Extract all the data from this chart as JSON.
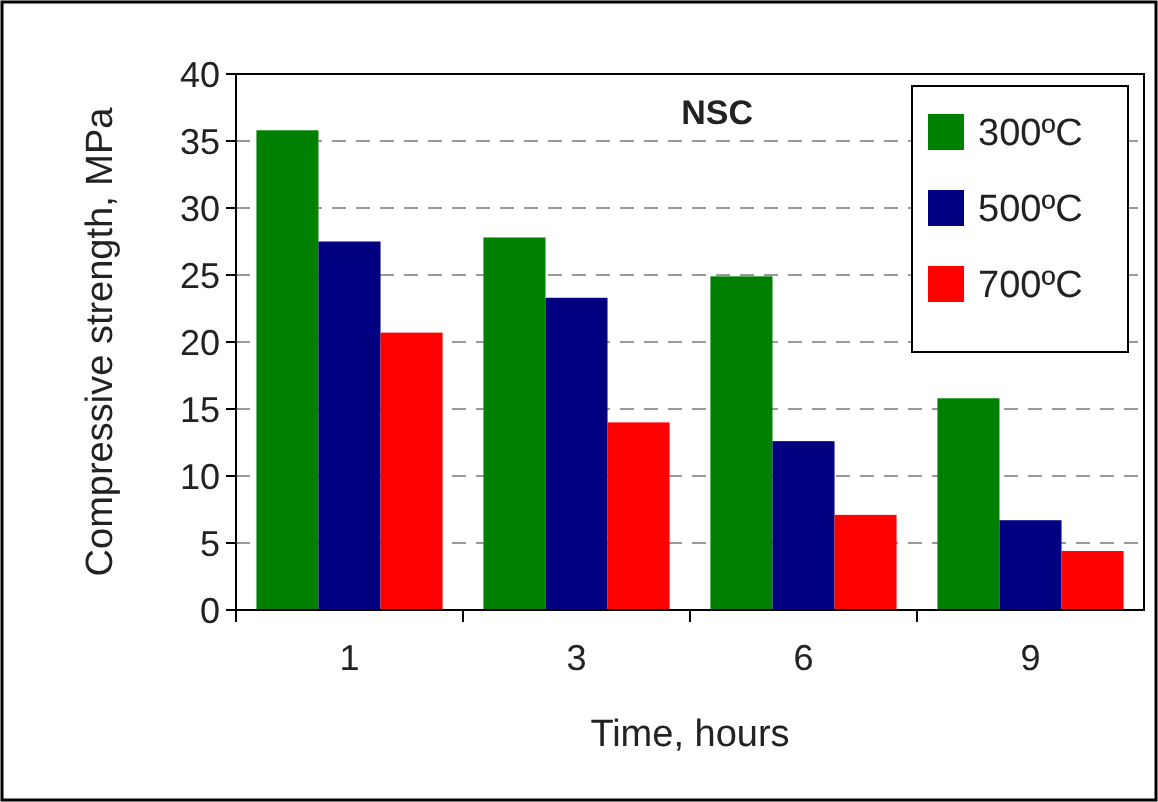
{
  "chart_data": {
    "type": "bar",
    "title": "NSC",
    "xlabel": "Time, hours",
    "ylabel": "Compressive strength, MPa",
    "categories": [
      "1",
      "3",
      "6",
      "9"
    ],
    "series": [
      {
        "name": "300ºC",
        "color": "#008000",
        "values": [
          35.8,
          27.8,
          24.9,
          15.8
        ]
      },
      {
        "name": "500ºC",
        "color": "#000080",
        "values": [
          27.5,
          23.3,
          12.6,
          6.7
        ]
      },
      {
        "name": "700ºC",
        "color": "#ff0000",
        "values": [
          20.7,
          14.0,
          7.1,
          4.4
        ]
      }
    ],
    "ylim": [
      0,
      40
    ],
    "yticks": [
      0,
      5,
      10,
      15,
      20,
      25,
      30,
      35,
      40
    ],
    "grid": "y",
    "legend": "top right"
  }
}
